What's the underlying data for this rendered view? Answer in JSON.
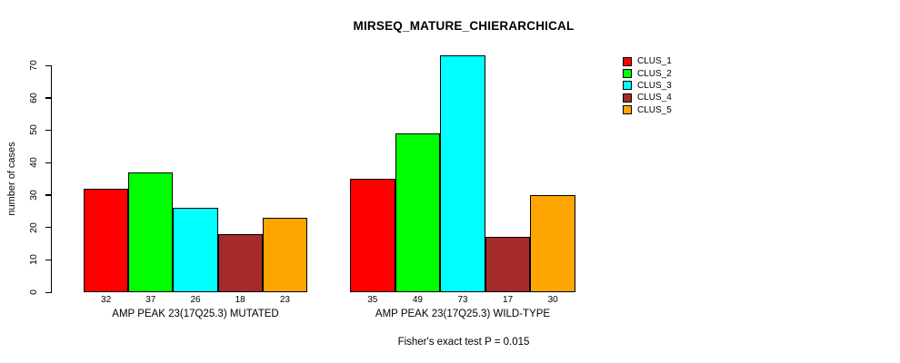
{
  "chart_data": {
    "type": "bar",
    "title": "MIRSEQ_MATURE_CHIERARCHICAL",
    "ylabel": "number of cases",
    "xlabel": "",
    "footer": "Fisher's exact test P = 0.015",
    "ylim": [
      0,
      70
    ],
    "yticks": [
      0,
      10,
      20,
      30,
      40,
      50,
      60,
      70
    ],
    "grid": false,
    "legend_position": "top-right",
    "bar_value_labels_shown": true,
    "categories": [
      "AMP PEAK 23(17Q25.3) MUTATED",
      "AMP PEAK 23(17Q25.3) WILD-TYPE"
    ],
    "series": [
      {
        "name": "CLUS_1",
        "color": "#FF0000",
        "values": [
          32,
          35
        ]
      },
      {
        "name": "CLUS_2",
        "color": "#00FF00",
        "values": [
          37,
          49
        ]
      },
      {
        "name": "CLUS_3",
        "color": "#00FFFF",
        "values": [
          26,
          73
        ]
      },
      {
        "name": "CLUS_4",
        "color": "#A52A2A",
        "values": [
          18,
          17
        ]
      },
      {
        "name": "CLUS_5",
        "color": "#FFA500",
        "values": [
          23,
          30
        ]
      }
    ]
  }
}
